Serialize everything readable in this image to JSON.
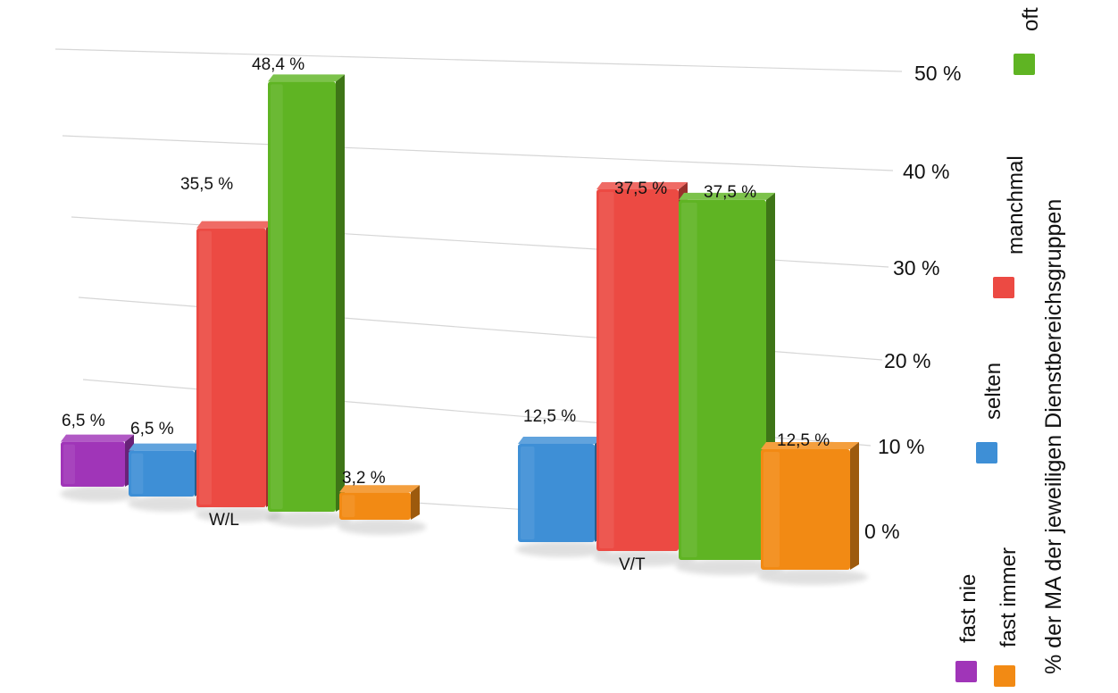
{
  "chart_data": {
    "type": "bar",
    "categories": [
      "W/L",
      "V/T"
    ],
    "series": [
      {
        "name": "fast nie",
        "values": [
          6.5,
          0
        ],
        "color": "#a035b8"
      },
      {
        "name": "selten",
        "values": [
          6.5,
          12.5
        ],
        "color": "#3e8fd6"
      },
      {
        "name": "manchmal",
        "values": [
          35.5,
          37.5
        ],
        "color": "#ec4a43"
      },
      {
        "name": "oft",
        "values": [
          48.4,
          37.5
        ],
        "color": "#5fb423"
      },
      {
        "name": "fast immer",
        "values": [
          3.2,
          12.5
        ],
        "color": "#f28a14"
      }
    ],
    "value_labels": [
      [
        "6,5 %",
        ""
      ],
      [
        "6,5 %",
        "12,5 %"
      ],
      [
        "35,5 %",
        "37,5 %"
      ],
      [
        "48,4 %",
        "37,5 %"
      ],
      [
        "3,2 %",
        "12,5 %"
      ]
    ],
    "yticks": [
      0,
      10,
      20,
      30,
      40,
      50
    ],
    "ytick_labels": [
      "0 %",
      "10 %",
      "20 %",
      "30 %",
      "40 %",
      "50 %"
    ],
    "ylim": [
      0,
      50
    ],
    "ylabel": "% der MA der jeweiligen Dienstbereichsgruppen",
    "xlabel": "",
    "grid": true,
    "legend_position": "right, vertical"
  }
}
